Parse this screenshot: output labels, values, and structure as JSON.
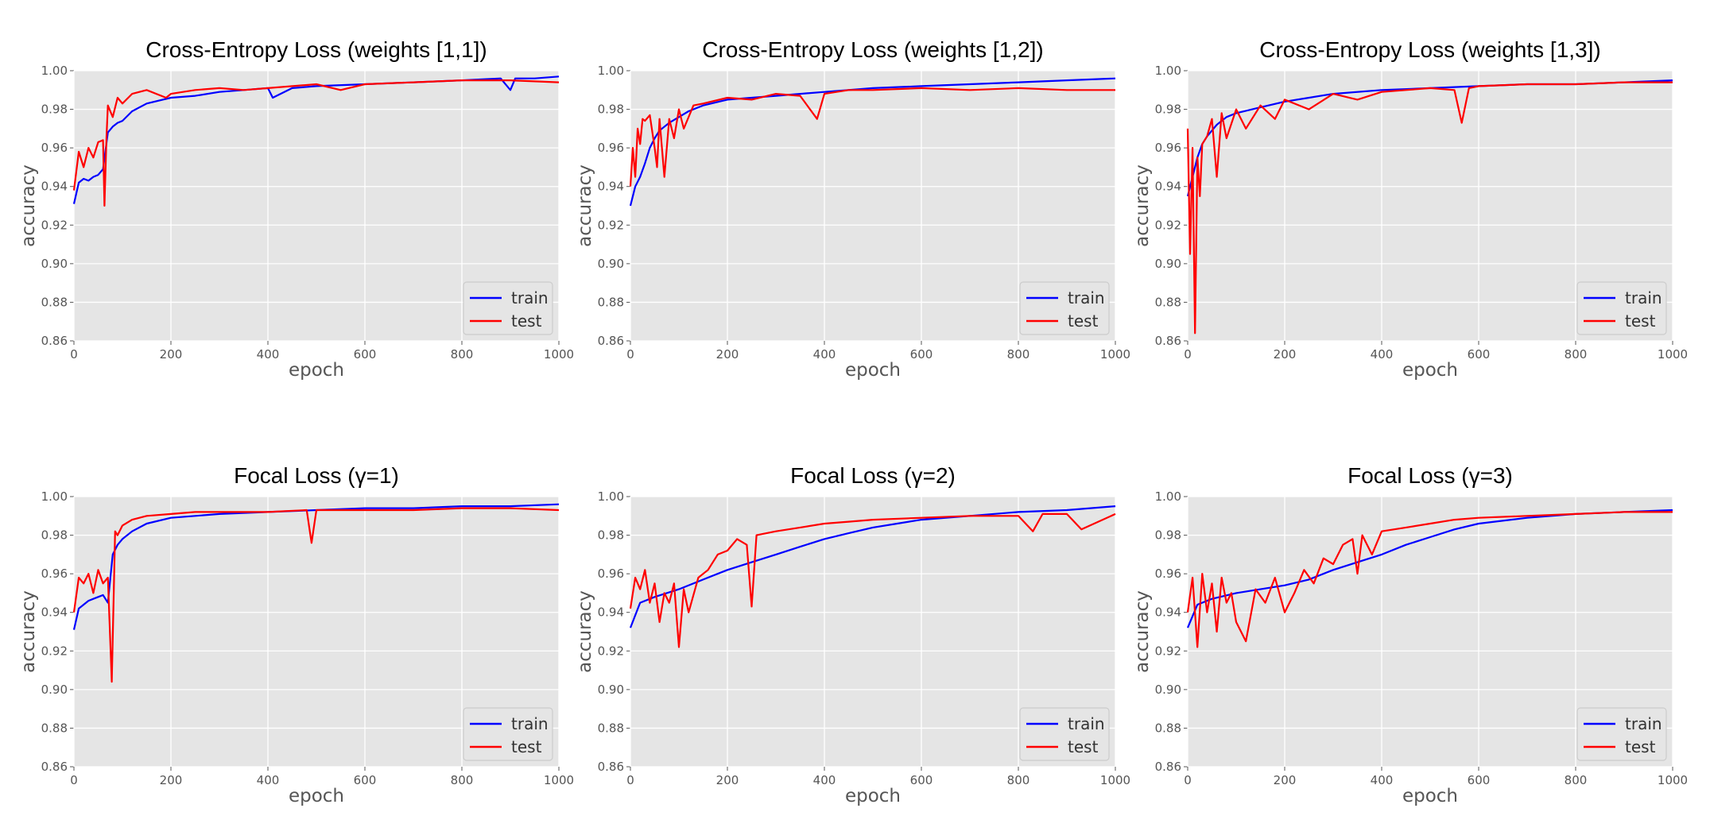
{
  "chart_data": [
    {
      "type": "line",
      "title": "Cross-Entropy Loss (weights [1,1])",
      "xlabel": "epoch",
      "ylabel": "accuracy",
      "xlim": [
        0,
        1000
      ],
      "ylim": [
        0.86,
        1.0
      ],
      "xticks": [
        "0",
        "200",
        "400",
        "600",
        "800",
        "1000"
      ],
      "yticks": [
        "0.86",
        "0.88",
        "0.90",
        "0.92",
        "0.94",
        "0.96",
        "0.98",
        "1.00"
      ],
      "grid": true,
      "legend_position": "lower-right",
      "series": [
        {
          "name": "train",
          "color": "#0000ff",
          "x": [
            0,
            10,
            20,
            30,
            40,
            50,
            60,
            70,
            80,
            90,
            100,
            120,
            150,
            200,
            250,
            300,
            350,
            400,
            410,
            450,
            500,
            600,
            700,
            800,
            880,
            900,
            910,
            950,
            1000
          ],
          "y": [
            0.931,
            0.942,
            0.944,
            0.943,
            0.945,
            0.946,
            0.949,
            0.968,
            0.971,
            0.973,
            0.974,
            0.979,
            0.983,
            0.986,
            0.987,
            0.989,
            0.99,
            0.991,
            0.986,
            0.991,
            0.992,
            0.993,
            0.994,
            0.995,
            0.996,
            0.99,
            0.996,
            0.996,
            0.997
          ]
        },
        {
          "name": "test",
          "color": "#ff0000",
          "x": [
            0,
            10,
            20,
            30,
            40,
            50,
            60,
            63,
            67,
            70,
            80,
            90,
            100,
            120,
            150,
            190,
            200,
            250,
            300,
            350,
            400,
            500,
            550,
            600,
            700,
            800,
            900,
            1000
          ],
          "y": [
            0.938,
            0.958,
            0.95,
            0.96,
            0.955,
            0.963,
            0.964,
            0.93,
            0.965,
            0.982,
            0.976,
            0.986,
            0.983,
            0.988,
            0.99,
            0.986,
            0.988,
            0.99,
            0.991,
            0.99,
            0.991,
            0.993,
            0.99,
            0.993,
            0.994,
            0.995,
            0.995,
            0.994
          ]
        }
      ]
    },
    {
      "type": "line",
      "title": "Cross-Entropy Loss (weights [1,2])",
      "xlabel": "epoch",
      "ylabel": "accuracy",
      "xlim": [
        0,
        1000
      ],
      "ylim": [
        0.86,
        1.0
      ],
      "xticks": [
        "0",
        "200",
        "400",
        "600",
        "800",
        "1000"
      ],
      "yticks": [
        "0.86",
        "0.88",
        "0.90",
        "0.92",
        "0.94",
        "0.96",
        "0.98",
        "1.00"
      ],
      "grid": true,
      "legend_position": "lower-right",
      "series": [
        {
          "name": "train",
          "color": "#0000ff",
          "x": [
            0,
            10,
            20,
            30,
            40,
            50,
            60,
            80,
            100,
            120,
            150,
            200,
            250,
            300,
            350,
            400,
            500,
            600,
            700,
            800,
            900,
            1000
          ],
          "y": [
            0.93,
            0.94,
            0.945,
            0.952,
            0.96,
            0.965,
            0.969,
            0.973,
            0.976,
            0.979,
            0.982,
            0.985,
            0.986,
            0.987,
            0.988,
            0.989,
            0.991,
            0.992,
            0.993,
            0.994,
            0.995,
            0.996
          ]
        },
        {
          "name": "test",
          "color": "#ff0000",
          "x": [
            0,
            5,
            10,
            15,
            20,
            25,
            30,
            40,
            50,
            55,
            60,
            70,
            80,
            90,
            100,
            110,
            130,
            150,
            200,
            250,
            300,
            350,
            385,
            400,
            450,
            500,
            600,
            700,
            800,
            900,
            1000
          ],
          "y": [
            0.94,
            0.96,
            0.945,
            0.97,
            0.962,
            0.975,
            0.974,
            0.977,
            0.96,
            0.95,
            0.975,
            0.945,
            0.975,
            0.965,
            0.98,
            0.97,
            0.982,
            0.983,
            0.986,
            0.985,
            0.988,
            0.987,
            0.975,
            0.988,
            0.99,
            0.99,
            0.991,
            0.99,
            0.991,
            0.99,
            0.99
          ]
        }
      ]
    },
    {
      "type": "line",
      "title": "Cross-Entropy Loss (weights [1,3])",
      "xlabel": "epoch",
      "ylabel": "accuracy",
      "xlim": [
        0,
        1000
      ],
      "ylim": [
        0.86,
        1.0
      ],
      "xticks": [
        "0",
        "200",
        "400",
        "600",
        "800",
        "1000"
      ],
      "yticks": [
        "0.86",
        "0.88",
        "0.90",
        "0.92",
        "0.94",
        "0.96",
        "0.98",
        "1.00"
      ],
      "grid": true,
      "legend_position": "lower-right",
      "series": [
        {
          "name": "train",
          "color": "#0000ff",
          "x": [
            0,
            10,
            20,
            30,
            40,
            60,
            80,
            100,
            150,
            200,
            250,
            300,
            400,
            500,
            600,
            700,
            800,
            900,
            1000
          ],
          "y": [
            0.935,
            0.945,
            0.955,
            0.962,
            0.966,
            0.972,
            0.976,
            0.978,
            0.981,
            0.984,
            0.986,
            0.988,
            0.99,
            0.991,
            0.992,
            0.993,
            0.993,
            0.994,
            0.995
          ]
        },
        {
          "name": "test",
          "color": "#ff0000",
          "x": [
            0,
            5,
            10,
            15,
            20,
            25,
            30,
            40,
            50,
            60,
            70,
            80,
            100,
            120,
            150,
            180,
            200,
            250,
            300,
            350,
            400,
            450,
            500,
            550,
            565,
            580,
            600,
            700,
            800,
            900,
            1000
          ],
          "y": [
            0.97,
            0.905,
            0.96,
            0.864,
            0.955,
            0.935,
            0.962,
            0.966,
            0.975,
            0.945,
            0.978,
            0.965,
            0.98,
            0.97,
            0.982,
            0.975,
            0.985,
            0.98,
            0.988,
            0.985,
            0.989,
            0.99,
            0.991,
            0.99,
            0.973,
            0.991,
            0.992,
            0.993,
            0.993,
            0.994,
            0.994
          ]
        }
      ]
    },
    {
      "type": "line",
      "title": "Focal Loss (γ=1)",
      "xlabel": "epoch",
      "ylabel": "accuracy",
      "xlim": [
        0,
        1000
      ],
      "ylim": [
        0.86,
        1.0
      ],
      "xticks": [
        "0",
        "200",
        "400",
        "600",
        "800",
        "1000"
      ],
      "yticks": [
        "0.86",
        "0.88",
        "0.90",
        "0.92",
        "0.94",
        "0.96",
        "0.98",
        "1.00"
      ],
      "grid": true,
      "legend_position": "lower-right",
      "series": [
        {
          "name": "train",
          "color": "#0000ff",
          "x": [
            0,
            10,
            20,
            30,
            40,
            50,
            60,
            70,
            80,
            90,
            100,
            120,
            150,
            200,
            250,
            300,
            400,
            500,
            600,
            700,
            800,
            900,
            1000
          ],
          "y": [
            0.931,
            0.942,
            0.944,
            0.946,
            0.947,
            0.948,
            0.949,
            0.945,
            0.97,
            0.975,
            0.978,
            0.982,
            0.986,
            0.989,
            0.99,
            0.991,
            0.992,
            0.993,
            0.994,
            0.994,
            0.995,
            0.995,
            0.996
          ]
        },
        {
          "name": "test",
          "color": "#ff0000",
          "x": [
            0,
            10,
            20,
            30,
            40,
            50,
            60,
            70,
            78,
            85,
            90,
            100,
            120,
            150,
            200,
            250,
            300,
            400,
            480,
            490,
            500,
            600,
            700,
            800,
            900,
            1000
          ],
          "y": [
            0.94,
            0.958,
            0.955,
            0.96,
            0.95,
            0.962,
            0.955,
            0.958,
            0.904,
            0.982,
            0.98,
            0.985,
            0.988,
            0.99,
            0.991,
            0.992,
            0.992,
            0.992,
            0.993,
            0.976,
            0.993,
            0.993,
            0.993,
            0.994,
            0.994,
            0.993
          ]
        }
      ]
    },
    {
      "type": "line",
      "title": "Focal Loss (γ=2)",
      "xlabel": "epoch",
      "ylabel": "accuracy",
      "xlim": [
        0,
        1000
      ],
      "ylim": [
        0.86,
        1.0
      ],
      "xticks": [
        "0",
        "200",
        "400",
        "600",
        "800",
        "1000"
      ],
      "yticks": [
        "0.86",
        "0.88",
        "0.90",
        "0.92",
        "0.94",
        "0.96",
        "0.98",
        "1.00"
      ],
      "grid": true,
      "legend_position": "lower-right",
      "series": [
        {
          "name": "train",
          "color": "#0000ff",
          "x": [
            0,
            20,
            50,
            100,
            150,
            200,
            250,
            300,
            350,
            400,
            450,
            500,
            550,
            600,
            700,
            800,
            900,
            1000
          ],
          "y": [
            0.932,
            0.945,
            0.948,
            0.952,
            0.957,
            0.962,
            0.966,
            0.97,
            0.974,
            0.978,
            0.981,
            0.984,
            0.986,
            0.988,
            0.99,
            0.992,
            0.993,
            0.995
          ]
        },
        {
          "name": "test",
          "color": "#ff0000",
          "x": [
            0,
            10,
            20,
            30,
            40,
            50,
            60,
            70,
            80,
            90,
            100,
            110,
            120,
            140,
            160,
            180,
            200,
            220,
            240,
            250,
            260,
            300,
            350,
            400,
            450,
            500,
            600,
            700,
            800,
            830,
            850,
            900,
            930,
            1000
          ],
          "y": [
            0.942,
            0.958,
            0.952,
            0.962,
            0.945,
            0.955,
            0.935,
            0.95,
            0.945,
            0.955,
            0.922,
            0.952,
            0.94,
            0.958,
            0.962,
            0.97,
            0.972,
            0.978,
            0.975,
            0.943,
            0.98,
            0.982,
            0.984,
            0.986,
            0.987,
            0.988,
            0.989,
            0.99,
            0.99,
            0.982,
            0.991,
            0.991,
            0.983,
            0.991
          ]
        }
      ]
    },
    {
      "type": "line",
      "title": "Focal Loss (γ=3)",
      "xlabel": "epoch",
      "ylabel": "accuracy",
      "xlim": [
        0,
        1000
      ],
      "ylim": [
        0.86,
        1.0
      ],
      "xticks": [
        "0",
        "200",
        "400",
        "600",
        "800",
        "1000"
      ],
      "yticks": [
        "0.86",
        "0.88",
        "0.90",
        "0.92",
        "0.94",
        "0.96",
        "0.98",
        "1.00"
      ],
      "grid": true,
      "legend_position": "lower-right",
      "series": [
        {
          "name": "train",
          "color": "#0000ff",
          "x": [
            0,
            20,
            50,
            100,
            150,
            200,
            250,
            300,
            350,
            400,
            450,
            500,
            550,
            600,
            700,
            800,
            900,
            1000
          ],
          "y": [
            0.932,
            0.944,
            0.947,
            0.95,
            0.952,
            0.954,
            0.957,
            0.962,
            0.966,
            0.97,
            0.975,
            0.979,
            0.983,
            0.986,
            0.989,
            0.991,
            0.992,
            0.993
          ]
        },
        {
          "name": "test",
          "color": "#ff0000",
          "x": [
            0,
            10,
            20,
            30,
            40,
            50,
            60,
            70,
            80,
            90,
            100,
            120,
            140,
            160,
            180,
            200,
            220,
            240,
            260,
            280,
            300,
            320,
            340,
            350,
            360,
            380,
            400,
            450,
            500,
            550,
            600,
            700,
            800,
            900,
            1000
          ],
          "y": [
            0.94,
            0.958,
            0.922,
            0.96,
            0.94,
            0.955,
            0.93,
            0.958,
            0.945,
            0.95,
            0.935,
            0.925,
            0.952,
            0.945,
            0.958,
            0.94,
            0.95,
            0.962,
            0.955,
            0.968,
            0.965,
            0.975,
            0.978,
            0.96,
            0.98,
            0.97,
            0.982,
            0.984,
            0.986,
            0.988,
            0.989,
            0.99,
            0.991,
            0.992,
            0.992
          ]
        }
      ]
    }
  ]
}
